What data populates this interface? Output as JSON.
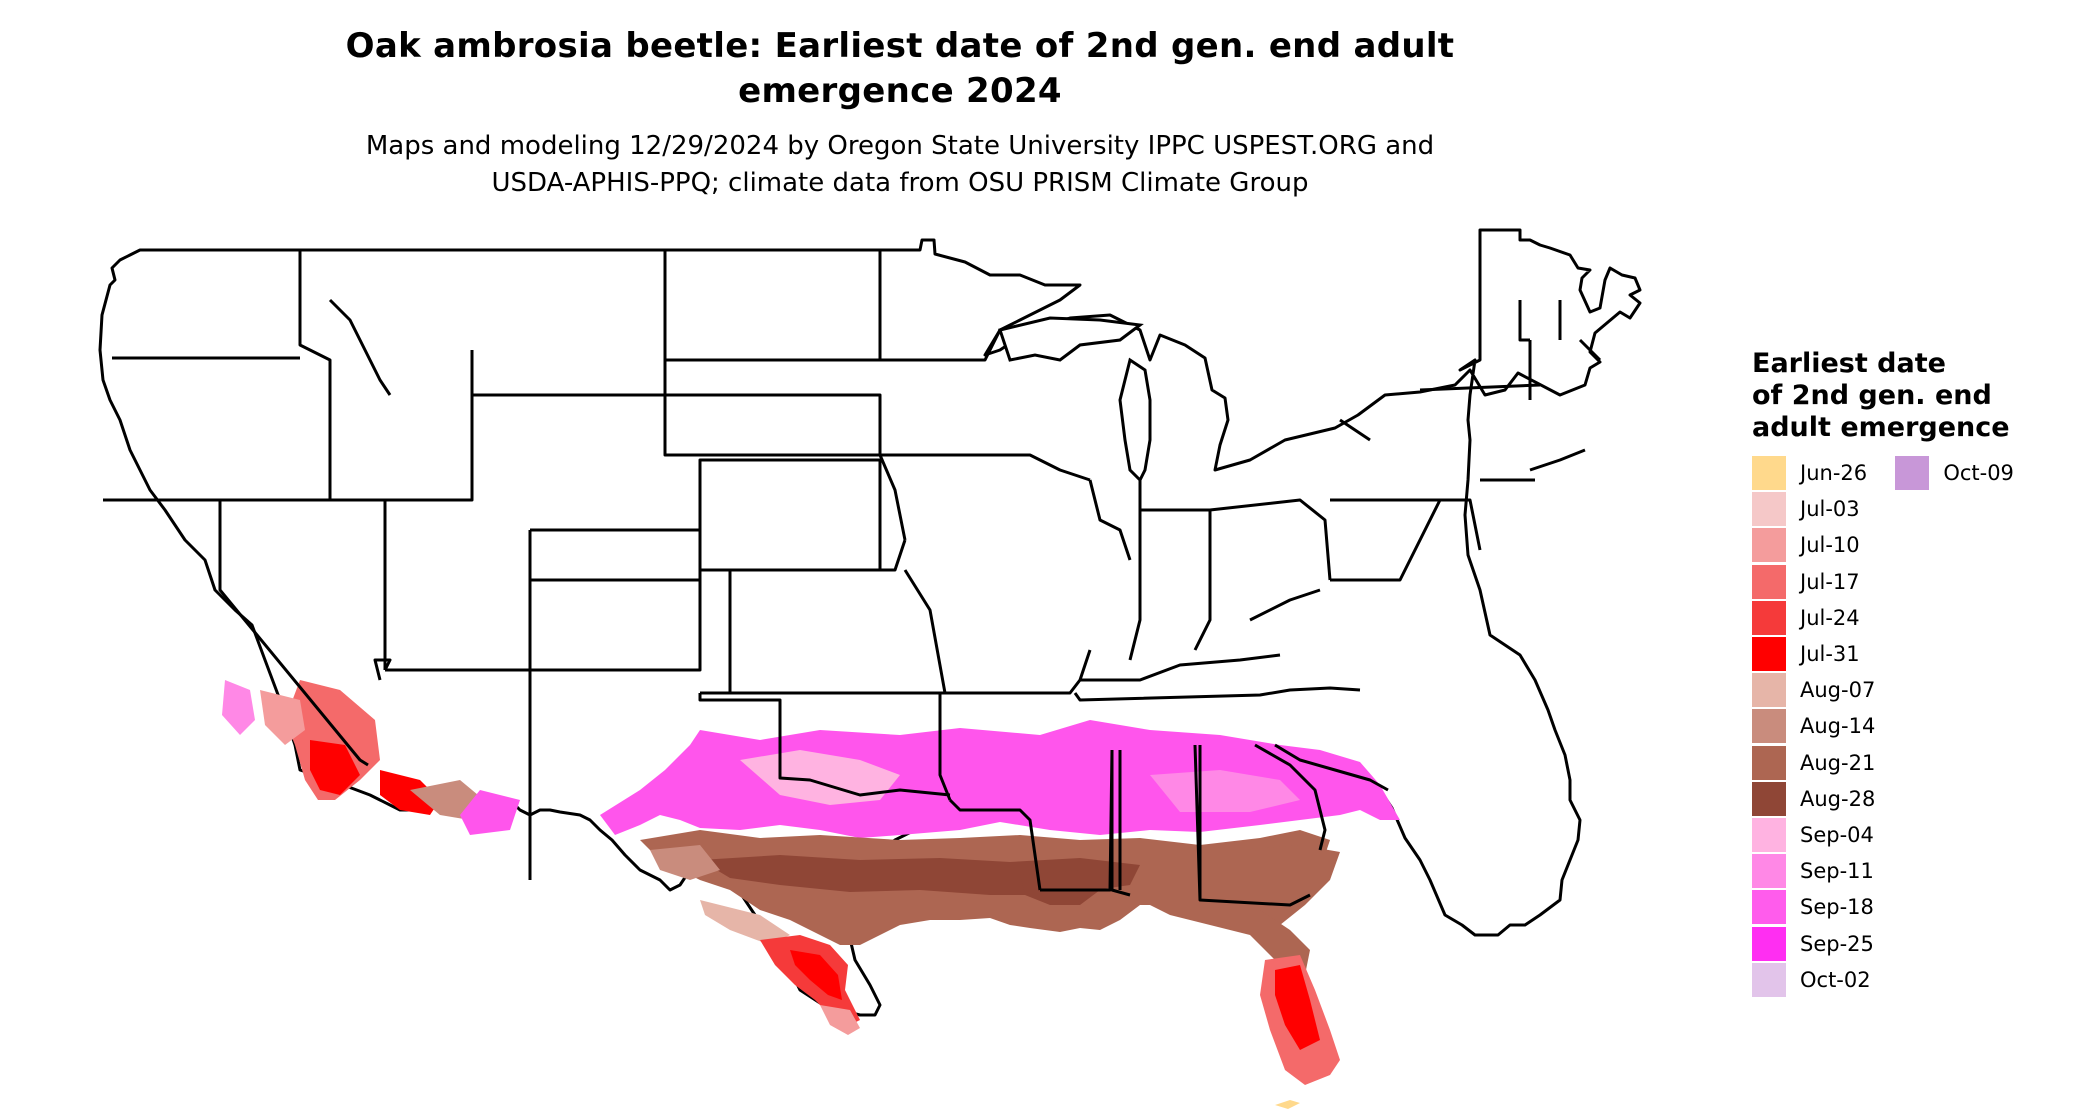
{
  "title_line1": "Oak ambrosia beetle: Earliest date of 2nd gen. end adult",
  "title_line2": "emergence 2024",
  "subtitle_line1": "Maps and modeling 12/29/2024 by Oregon State University IPPC USPEST.ORG and",
  "subtitle_line2": "USDA-APHIS-PPQ; climate data from OSU PRISM Climate Group",
  "legend": {
    "title_line1": "Earliest date",
    "title_line2": "of 2nd gen. end",
    "title_line3": "adult emergence",
    "items": [
      {
        "label": "Jun-26",
        "color": "#FFD98C"
      },
      {
        "label": "Jul-03",
        "color": "#F5C8C8"
      },
      {
        "label": "Jul-10",
        "color": "#F49C9C"
      },
      {
        "label": "Jul-17",
        "color": "#F46A6A"
      },
      {
        "label": "Jul-24",
        "color": "#F53A3A"
      },
      {
        "label": "Jul-31",
        "color": "#FF0000"
      },
      {
        "label": "Aug-07",
        "color": "#E6B5A8"
      },
      {
        "label": "Aug-14",
        "color": "#C98C7D"
      },
      {
        "label": "Aug-21",
        "color": "#AD6652"
      },
      {
        "label": "Aug-28",
        "color": "#8F4636"
      },
      {
        "label": "Sep-04",
        "color": "#FFB3E1"
      },
      {
        "label": "Sep-11",
        "color": "#FF88E6"
      },
      {
        "label": "Sep-18",
        "color": "#FF5CEC"
      },
      {
        "label": "Sep-25",
        "color": "#FF2EF2"
      },
      {
        "label": "Oct-02",
        "color": "#E2C4EA"
      },
      {
        "label": "Oct-09",
        "color": "#C897D8"
      }
    ]
  }
}
